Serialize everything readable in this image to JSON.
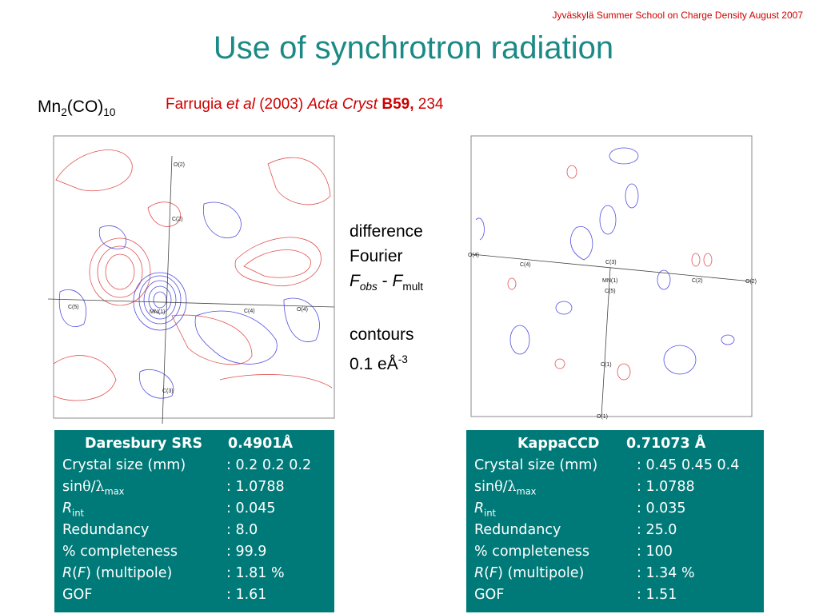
{
  "header": {
    "note": "Jyväskylä Summer School  on Charge Density August 2007",
    "title": "Use of synchrotron radiation"
  },
  "compound": [
    "Mn",
    "2",
    "(CO)",
    "10"
  ],
  "reference": {
    "author": "Farrugia",
    "etal": "et al",
    "year": "(2003)",
    "journal": "Acta Cryst",
    "volume": "B59,",
    "page": "234"
  },
  "caption": {
    "line1": "difference",
    "line2": "Fourier",
    "formula": [
      "F",
      "obs",
      " - ",
      "F",
      "mult"
    ],
    "contours": "contours",
    "level": "0.1 eÅ",
    "exponent": "-3"
  },
  "maps": [
    {
      "atoms": [
        "O(2)",
        "C(2)",
        "C(5)",
        "MN(1)",
        "C(4)",
        "O(4)",
        "C(3)"
      ]
    },
    {
      "atoms": [
        "O(4)",
        "C(4)",
        "C(3)",
        "MN(1)",
        "C(5)",
        "C(2)",
        "O(2)",
        "C(1)",
        "O(1)"
      ]
    }
  ],
  "tables": [
    {
      "header": [
        "Daresbury SRS",
        "0.4901Å"
      ],
      "rows": [
        [
          [
            "Crystal size (mm)"
          ],
          ": 0.2 0.2 0.2"
        ],
        [
          [
            "sin",
            "θ",
            "/",
            "λ",
            "max"
          ],
          ": 1.0788"
        ],
        [
          [
            "R",
            "int"
          ],
          ": 0.045"
        ],
        [
          [
            "Redundancy"
          ],
          ": 8.0"
        ],
        [
          [
            "% completeness"
          ],
          ": 99.9"
        ],
        [
          [
            "R",
            "(",
            "F",
            ") (multipole)"
          ],
          ": 1.81 %"
        ],
        [
          [
            "GOF"
          ],
          ": 1.61"
        ]
      ]
    },
    {
      "header": [
        "KappaCCD",
        "0.71073 Å"
      ],
      "rows": [
        [
          [
            "Crystal size (mm)"
          ],
          ": 0.45 0.45 0.4"
        ],
        [
          [
            "sin",
            "θ",
            "/",
            "λ",
            "max"
          ],
          ": 1.0788"
        ],
        [
          [
            "R",
            "int"
          ],
          ": 0.035"
        ],
        [
          [
            "Redundancy"
          ],
          ": 25.0"
        ],
        [
          [
            "% completeness"
          ],
          ": 100"
        ],
        [
          [
            "R",
            "(",
            "F",
            ") (multipole)"
          ],
          ": 1.34 %"
        ],
        [
          [
            "GOF"
          ],
          ": 1.51"
        ]
      ]
    }
  ]
}
